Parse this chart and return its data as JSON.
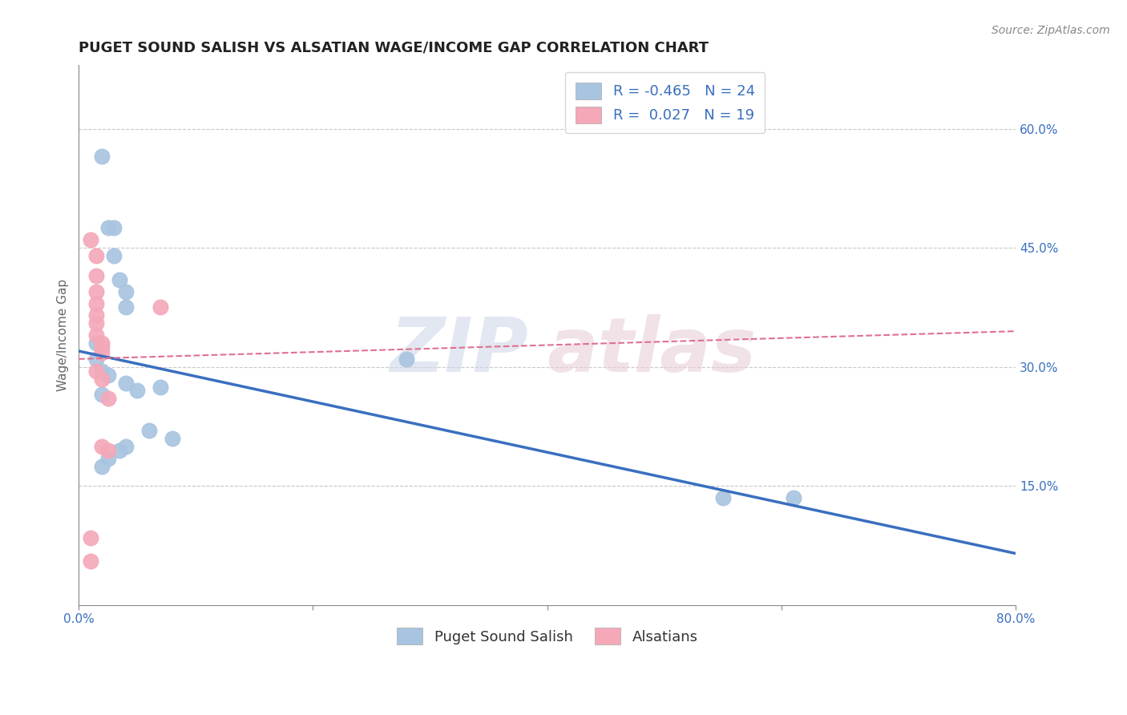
{
  "title": "PUGET SOUND SALISH VS ALSATIAN WAGE/INCOME GAP CORRELATION CHART",
  "source": "Source: ZipAtlas.com",
  "ylabel": "Wage/Income Gap",
  "xlim": [
    0.0,
    0.8
  ],
  "ylim": [
    0.0,
    0.68
  ],
  "xticks": [
    0.0,
    0.2,
    0.4,
    0.6,
    0.8
  ],
  "xtick_labels": [
    "0.0%",
    "",
    "",
    "",
    "80.0%"
  ],
  "yticks": [
    0.15,
    0.3,
    0.45,
    0.6
  ],
  "ytick_labels": [
    "15.0%",
    "30.0%",
    "45.0%",
    "60.0%"
  ],
  "grid_color": "#c8c8c8",
  "background_color": "#ffffff",
  "blue_color": "#a8c4e0",
  "pink_color": "#f4a8b8",
  "blue_line_color": "#3a6fbf",
  "pink_line_color": "#e07090",
  "blue_label": "Puget Sound Salish",
  "pink_label": "Alsatians",
  "blue_R": "-0.465",
  "blue_N": "24",
  "pink_R": "0.027",
  "pink_N": "19",
  "accent_color": "#3a6fbf",
  "blue_scatter_x": [
    0.02,
    0.025,
    0.03,
    0.03,
    0.035,
    0.04,
    0.04,
    0.015,
    0.015,
    0.02,
    0.025,
    0.02,
    0.04,
    0.05,
    0.07,
    0.08,
    0.06,
    0.04,
    0.035,
    0.025,
    0.02,
    0.55,
    0.61,
    0.28
  ],
  "blue_scatter_y": [
    0.565,
    0.475,
    0.475,
    0.44,
    0.41,
    0.395,
    0.375,
    0.33,
    0.31,
    0.295,
    0.29,
    0.265,
    0.28,
    0.27,
    0.275,
    0.21,
    0.22,
    0.2,
    0.195,
    0.185,
    0.175,
    0.135,
    0.135,
    0.31
  ],
  "pink_scatter_x": [
    0.01,
    0.015,
    0.015,
    0.015,
    0.015,
    0.015,
    0.015,
    0.015,
    0.02,
    0.02,
    0.02,
    0.015,
    0.02,
    0.025,
    0.07,
    0.02,
    0.025,
    0.01,
    0.01
  ],
  "pink_scatter_y": [
    0.46,
    0.44,
    0.415,
    0.395,
    0.38,
    0.365,
    0.355,
    0.34,
    0.33,
    0.325,
    0.318,
    0.295,
    0.285,
    0.26,
    0.375,
    0.2,
    0.195,
    0.085,
    0.055
  ],
  "blue_trend_x": [
    0.0,
    0.8
  ],
  "blue_trend_y": [
    0.32,
    0.065
  ],
  "pink_trend_x": [
    0.0,
    0.8
  ],
  "pink_trend_y": [
    0.31,
    0.345
  ],
  "watermark_top": "ZIP",
  "watermark_bot": "atlas",
  "title_fontsize": 13,
  "label_fontsize": 11,
  "tick_fontsize": 11,
  "legend_fontsize": 13
}
